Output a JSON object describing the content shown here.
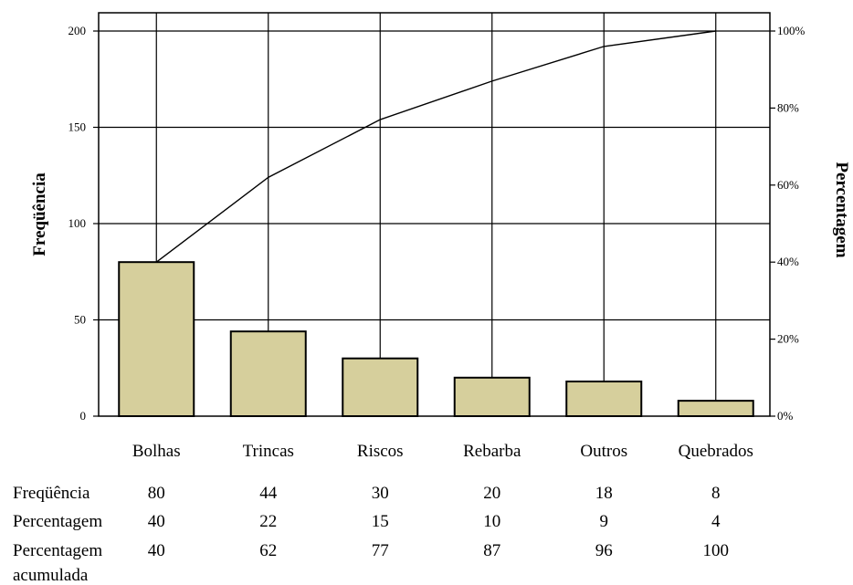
{
  "chart_data": {
    "type": "bar",
    "categories": [
      "Bolhas",
      "Trincas",
      "Riscos",
      "Rebarba",
      "Outros",
      "Quebrados"
    ],
    "series": [
      {
        "name": "Freqüência",
        "values": [
          80,
          44,
          30,
          20,
          18,
          8
        ]
      },
      {
        "name": "Percentagem acumulada",
        "values": [
          40,
          62,
          77,
          87,
          96,
          100
        ],
        "render": "line",
        "axis": "right"
      }
    ],
    "ylabel": "Freqüência",
    "ylabel_right": "Percentagem",
    "ylim": [
      0,
      200
    ],
    "yticks": [
      "0",
      "50",
      "100",
      "150",
      "200"
    ],
    "ylim_right": [
      0,
      100
    ],
    "yticks_right": [
      "0%",
      "20%",
      "40%",
      "60%",
      "80%",
      "100%"
    ],
    "grid": true,
    "colors": {
      "bar_fill": "#d6cf9c",
      "bar_stroke": "#000000",
      "line": "#000000",
      "grid": "#000000"
    }
  },
  "table": {
    "rows": [
      {
        "label": "Freqüência",
        "values": [
          "80",
          "44",
          "30",
          "20",
          "18",
          "8"
        ]
      },
      {
        "label": "Percentagem",
        "values": [
          "40",
          "22",
          "15",
          "10",
          "9",
          "4"
        ]
      },
      {
        "label_lines": [
          "Percentagem",
          "acumulada"
        ],
        "values": [
          "40",
          "62",
          "77",
          "87",
          "96",
          "100"
        ]
      }
    ]
  }
}
